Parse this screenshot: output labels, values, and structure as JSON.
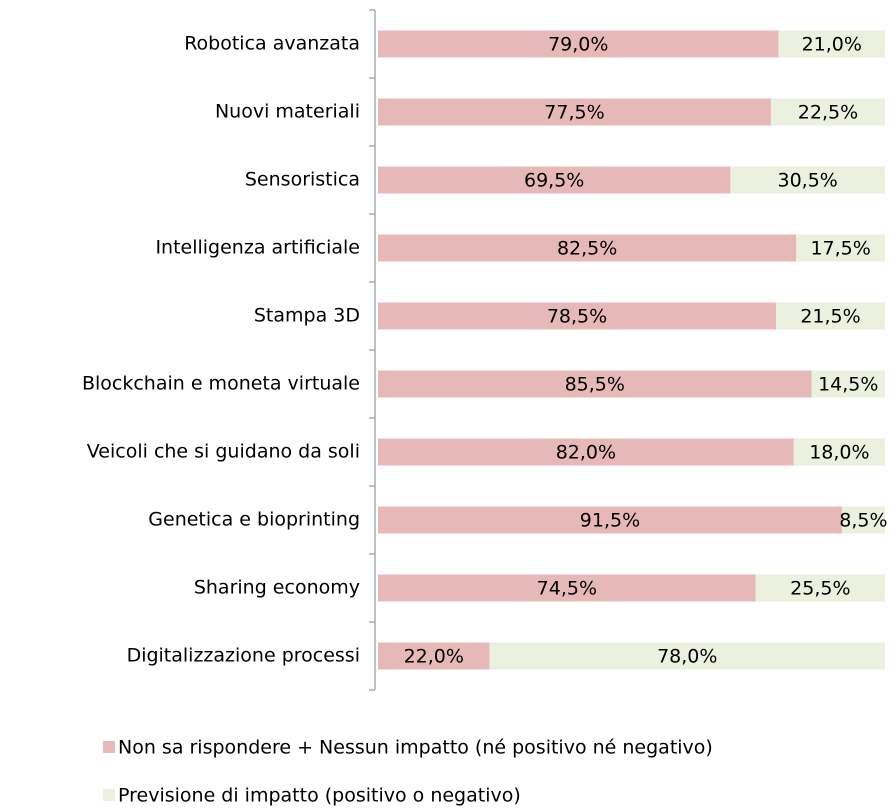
{
  "chart_data": {
    "type": "stacked_barh",
    "categories": [
      "Robotica avanzata",
      "Nuovi materiali",
      "Sensoristica",
      "Intelligenza artificiale",
      "Stampa 3D",
      "Blockchain e moneta virtuale",
      "Veicoli che si guidano da soli",
      "Genetica e bioprinting",
      "Sharing economy",
      "Digitalizzazione processi"
    ],
    "series": [
      {
        "name": "Non sa rispondere + Nessun impatto (né positivo né negativo)",
        "color": "#e6b9b8",
        "values": [
          79.0,
          77.5,
          69.5,
          82.5,
          78.5,
          85.5,
          82.0,
          91.5,
          74.5,
          22.0
        ],
        "value_labels": [
          "79,0%",
          "77,5%",
          "69,5%",
          "82,5%",
          "78,5%",
          "85,5%",
          "82,0%",
          "91,5%",
          "74,5%",
          "22,0%"
        ]
      },
      {
        "name": "Previsione di impatto (positivo o negativo)",
        "color": "#ebf1de",
        "values": [
          21.0,
          22.5,
          30.5,
          17.5,
          21.5,
          14.5,
          18.0,
          8.5,
          25.5,
          78.0
        ],
        "value_labels": [
          "21,0%",
          "22,5%",
          "30,5%",
          "17,5%",
          "21,5%",
          "14,5%",
          "18,0%",
          "8,5%",
          "25,5%",
          "78,0%"
        ]
      }
    ],
    "xlim": [
      0,
      100
    ]
  }
}
